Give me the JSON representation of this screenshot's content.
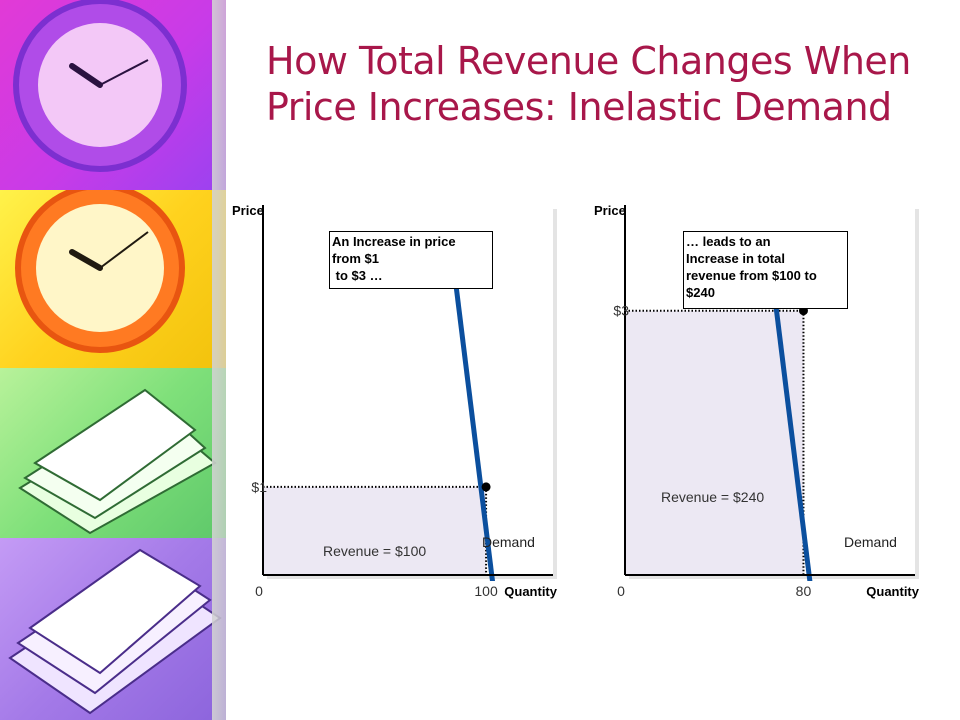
{
  "title": "How Total Revenue Changes When Price Increases: Inelastic Demand",
  "theme": {
    "title_color": "#a8174a",
    "curve_color": "#0b4f9e",
    "revenue_fill": "#ece8f3"
  },
  "chart_data": [
    {
      "type": "line",
      "ylabel": "Price",
      "xlabel": "Quantity",
      "origin_label": "0",
      "point": {
        "x": 100,
        "y": 1,
        "x_label": "100",
        "y_label": "$1"
      },
      "demand_curve": {
        "name": "Demand",
        "x": [
          85,
          104
        ],
        "y": [
          3.6,
          -0.3
        ]
      },
      "revenue_label": "Revenue = $100",
      "callout": [
        "An Increase in price",
        "from $1",
        " to $3 …"
      ],
      "xlim": [
        0,
        130
      ],
      "ylim": [
        0,
        4.2
      ]
    },
    {
      "type": "line",
      "ylabel": "Price",
      "xlabel": "Quantity",
      "origin_label": "0",
      "point": {
        "x": 80,
        "y": 3,
        "x_label": "80",
        "y_label": "$3"
      },
      "demand_curve": {
        "name": "Demand",
        "x": [
          65,
          84
        ],
        "y": [
          3.6,
          -0.3
        ]
      },
      "revenue_label": "Revenue = $240",
      "callout": [
        "… leads to an",
        "Increase in total",
        "revenue from $100 to",
        "$240"
      ],
      "xlim": [
        0,
        130
      ],
      "ylim": [
        0,
        4.2
      ]
    }
  ]
}
